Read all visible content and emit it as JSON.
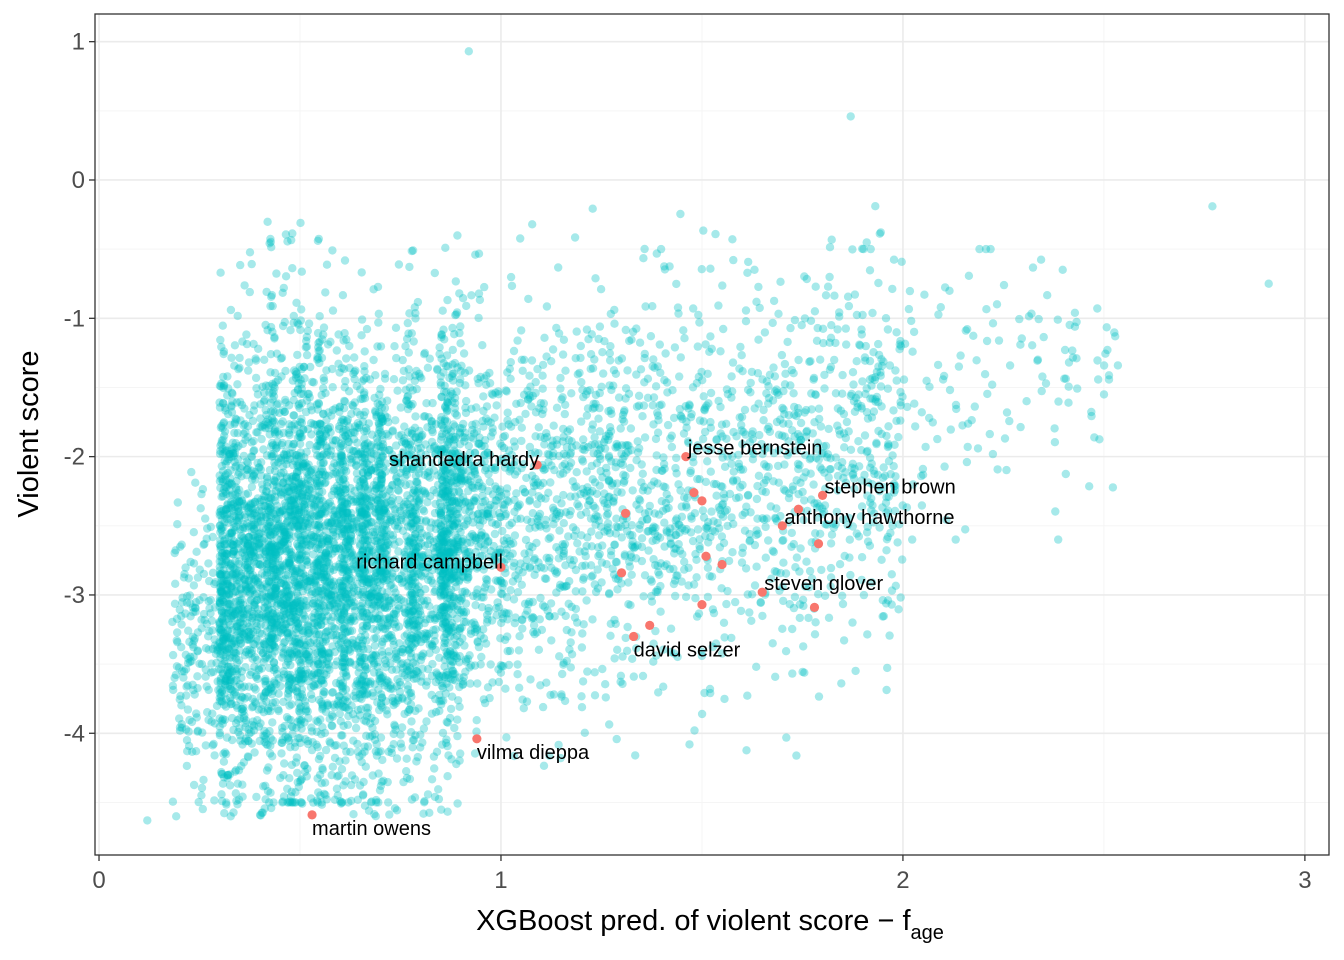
{
  "chart_data": {
    "type": "scatter",
    "title": "",
    "xlabel": "XGBoost pred. of violent score − f",
    "xlabel_subscript": "age",
    "ylabel": "Violent score",
    "xlim": [
      -0.01,
      3.06
    ],
    "ylim": [
      -4.88,
      1.2
    ],
    "x_ticks": [
      0,
      1,
      2,
      3
    ],
    "y_ticks": [
      1,
      0,
      -1,
      -2,
      -3,
      -4
    ],
    "x_tick_labels": [
      "0",
      "1",
      "2",
      "3"
    ],
    "y_tick_labels": [
      "1",
      "0",
      "-1",
      "-2",
      "-3",
      "-4"
    ],
    "grid": true,
    "legend": "none",
    "colors": {
      "background_points": "#00bfc4",
      "highlighted_points": "#f8766d",
      "grid_major": "#ebebeb",
      "grid_minor": "#f5f5f5",
      "panel_border": "#333333"
    },
    "series": [
      {
        "role": "background",
        "approx_count": 7000,
        "opacity": 0.35,
        "notable_points": [
          {
            "x": 0.92,
            "y": 0.93
          },
          {
            "x": 1.87,
            "y": 0.46
          },
          {
            "x": 0.12,
            "y": -4.63
          },
          {
            "x": 2.77,
            "y": -0.19
          },
          {
            "x": 2.91,
            "y": -0.75
          }
        ]
      },
      {
        "role": "highlighted",
        "points": [
          {
            "x": 1.09,
            "y": -2.06,
            "label": "shandedra hardy"
          },
          {
            "x": 1.46,
            "y": -2.0,
            "label": "jesse bernstein"
          },
          {
            "x": 1.8,
            "y": -2.28,
            "label": "stephen brown"
          },
          {
            "x": 1.7,
            "y": -2.5,
            "label": "anthony hawthorne"
          },
          {
            "x": 1.0,
            "y": -2.8,
            "label": "richard campbell"
          },
          {
            "x": 1.65,
            "y": -2.98,
            "label": "steven glover"
          },
          {
            "x": 1.33,
            "y": -3.3,
            "label": "david selzer"
          },
          {
            "x": 0.94,
            "y": -4.04,
            "label": "vilma dieppa"
          },
          {
            "x": 0.53,
            "y": -4.59,
            "label": "martin owens"
          },
          {
            "x": 1.48,
            "y": -2.26,
            "label": ""
          },
          {
            "x": 1.5,
            "y": -2.32,
            "label": ""
          },
          {
            "x": 1.31,
            "y": -2.41,
            "label": ""
          },
          {
            "x": 1.74,
            "y": -2.38,
            "label": ""
          },
          {
            "x": 1.79,
            "y": -2.63,
            "label": ""
          },
          {
            "x": 1.51,
            "y": -2.72,
            "label": ""
          },
          {
            "x": 1.55,
            "y": -2.78,
            "label": ""
          },
          {
            "x": 1.3,
            "y": -2.84,
            "label": ""
          },
          {
            "x": 1.5,
            "y": -3.07,
            "label": ""
          },
          {
            "x": 1.78,
            "y": -3.09,
            "label": ""
          },
          {
            "x": 1.37,
            "y": -3.22,
            "label": ""
          }
        ]
      }
    ]
  }
}
